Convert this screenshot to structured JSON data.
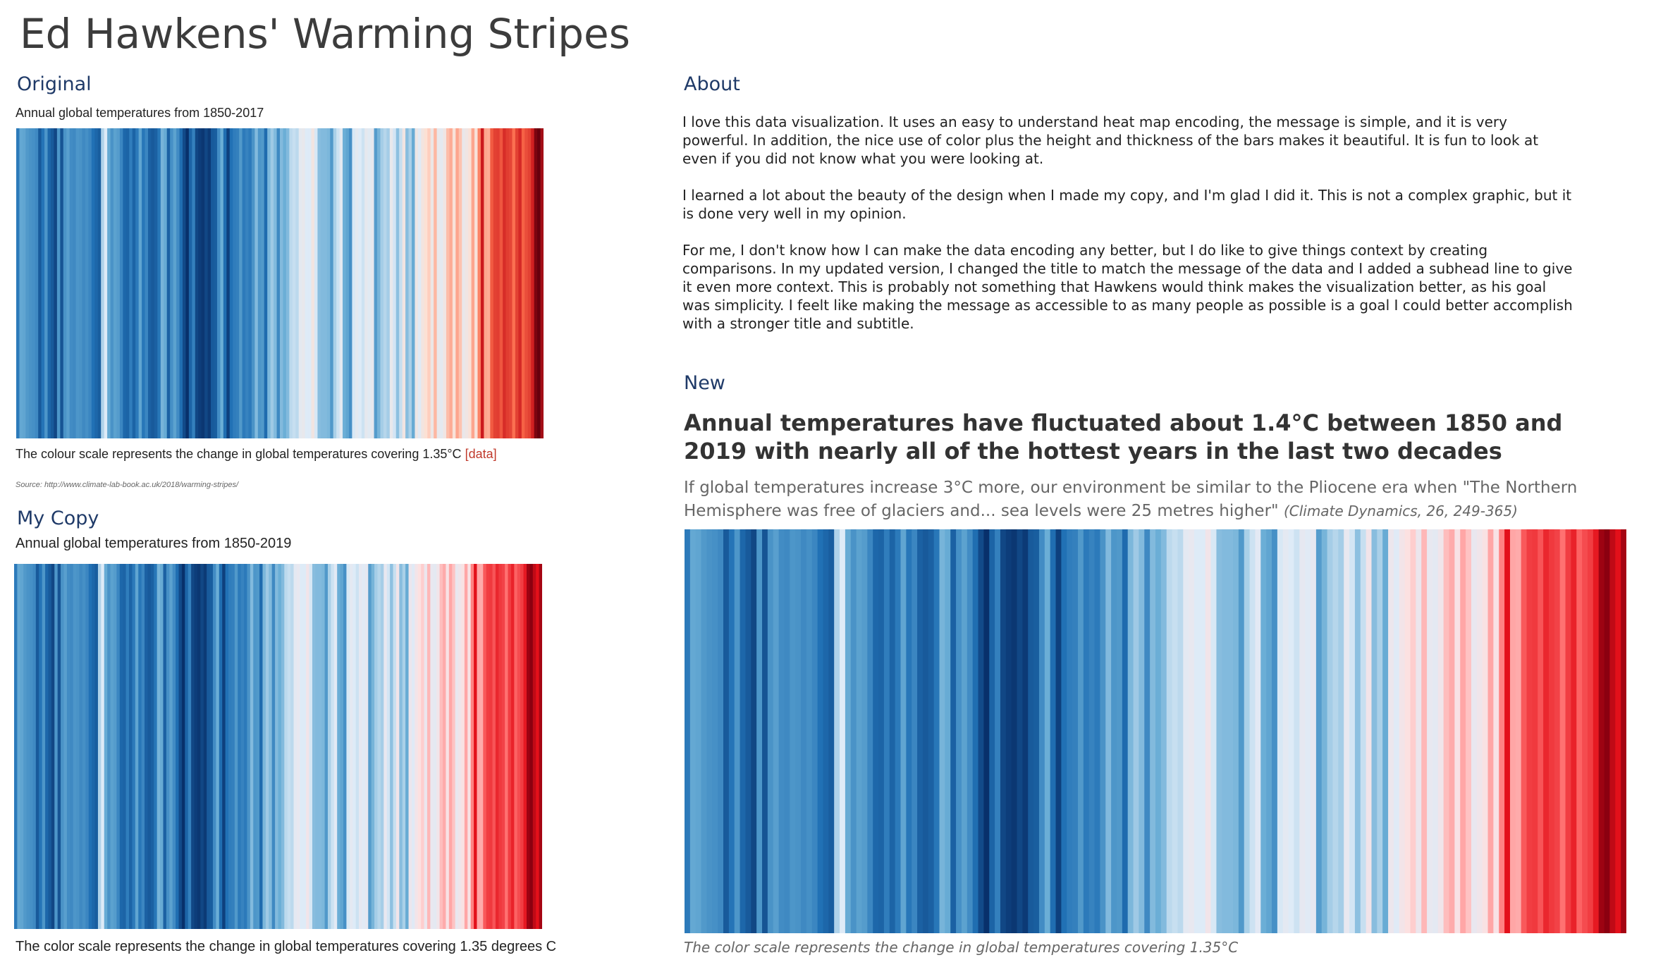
{
  "title": "Ed Hawkens' Warming Stripes",
  "about": {
    "heading": "About",
    "paragraphs": [
      "I love this data visualization. It uses an easy to understand heat map encoding, the message is simple, and it is very powerful. In addition, the nice use of color plus the height and thickness of the bars makes it beautiful. It is fun to look at even if you did not know what you were looking at.",
      "I learned a lot about the beauty of the design when I made my copy, and I'm glad I did it. This is not a complex graphic, but it is done very well in my opinion.",
      "For me, I don't know how I can make the data encoding any better, but I do like to give things context by creating comparisons. In my updated version, I changed the title to match the message of the data and I added a subhead line to give it even more context. This is probably not something that Hawkens would think makes the visualization better, as his goal was simplicity. I feelt like making the message as accessible to as many people as possible is a goal I could better accomplish with a stronger title and subtitle."
    ]
  },
  "chart_data": [
    {
      "type": "stripes",
      "section": "Original",
      "title": "Annual global temperatures from 1850-2017",
      "caption": "The colour scale represents the change in global temperatures covering 1.35°C",
      "caption_link": "[data]",
      "source": "Source: http://www.climate-lab-book.ac.uk/2018/warming-stripes/",
      "color_scale": {
        "min": -0.6,
        "max": 0.8,
        "colors": [
          "#08306b",
          "#2171b5",
          "#6baed6",
          "#deebf7",
          "#fee0d2",
          "#fb6a4a",
          "#cb181d",
          "#67000d"
        ]
      },
      "values": [
        -0.37,
        -0.22,
        -0.23,
        -0.27,
        -0.29,
        -0.3,
        -0.32,
        -0.47,
        -0.39,
        -0.28,
        -0.43,
        -0.47,
        -0.53,
        -0.28,
        -0.49,
        -0.29,
        -0.25,
        -0.31,
        -0.32,
        -0.28,
        -0.29,
        -0.32,
        -0.3,
        -0.33,
        -0.4,
        -0.43,
        -0.46,
        -0.08,
        0.0,
        -0.21,
        -0.29,
        -0.24,
        -0.26,
        -0.33,
        -0.43,
        -0.44,
        -0.36,
        -0.44,
        -0.37,
        -0.23,
        -0.38,
        -0.33,
        -0.45,
        -0.47,
        -0.45,
        -0.38,
        -0.18,
        -0.21,
        -0.45,
        -0.3,
        -0.24,
        -0.31,
        -0.41,
        -0.52,
        -0.6,
        -0.44,
        -0.35,
        -0.53,
        -0.56,
        -0.58,
        -0.53,
        -0.57,
        -0.47,
        -0.46,
        -0.31,
        -0.2,
        -0.41,
        -0.55,
        -0.4,
        -0.36,
        -0.35,
        -0.27,
        -0.37,
        -0.34,
        -0.37,
        -0.29,
        -0.16,
        -0.28,
        -0.27,
        -0.42,
        -0.17,
        -0.11,
        -0.16,
        -0.32,
        -0.16,
        -0.2,
        -0.16,
        -0.06,
        -0.04,
        -0.06,
        0.04,
        0.06,
        0.0,
        0.0,
        0.12,
        -0.01,
        -0.15,
        -0.16,
        -0.16,
        -0.17,
        -0.27,
        -0.09,
        -0.03,
        0.03,
        -0.2,
        -0.23,
        -0.3,
        -0.01,
        0.04,
        0.0,
        -0.03,
        0.05,
        0.02,
        0.05,
        -0.26,
        -0.18,
        -0.1,
        -0.07,
        -0.1,
        0.06,
        -0.02,
        -0.14,
        -0.04,
        0.12,
        -0.15,
        -0.09,
        -0.21,
        0.09,
        0.01,
        0.13,
        0.19,
        0.23,
        0.09,
        0.27,
        0.06,
        0.04,
        0.11,
        0.26,
        0.29,
        0.16,
        0.3,
        0.25,
        0.07,
        0.11,
        0.17,
        0.3,
        0.16,
        0.36,
        0.6,
        0.3,
        0.29,
        0.44,
        0.5,
        0.51,
        0.45,
        0.55,
        0.51,
        0.49,
        0.39,
        0.5,
        0.56,
        0.42,
        0.47,
        0.5,
        0.58,
        0.76,
        0.8,
        0.68
      ]
    },
    {
      "type": "stripes",
      "section": "My Copy",
      "title": "Annual global temperatures from 1850-2019",
      "caption": "The color scale represents the change in global temperatures covering 1.35 degrees C",
      "color_scale": {
        "min": -0.6,
        "max": 0.8,
        "colors": [
          "#08306b",
          "#2171b5",
          "#6baed6",
          "#deebf7",
          "#fee0e0",
          "#ff6b6b",
          "#e3101a",
          "#8b0010"
        ]
      },
      "values": [
        -0.37,
        -0.22,
        -0.23,
        -0.27,
        -0.29,
        -0.3,
        -0.32,
        -0.47,
        -0.39,
        -0.28,
        -0.43,
        -0.47,
        -0.53,
        -0.28,
        -0.49,
        -0.29,
        -0.25,
        -0.31,
        -0.32,
        -0.28,
        -0.29,
        -0.32,
        -0.3,
        -0.33,
        -0.4,
        -0.43,
        -0.46,
        -0.08,
        0.0,
        -0.21,
        -0.29,
        -0.24,
        -0.26,
        -0.33,
        -0.43,
        -0.44,
        -0.36,
        -0.44,
        -0.37,
        -0.23,
        -0.38,
        -0.33,
        -0.45,
        -0.47,
        -0.45,
        -0.38,
        -0.18,
        -0.21,
        -0.45,
        -0.3,
        -0.24,
        -0.31,
        -0.41,
        -0.52,
        -0.6,
        -0.44,
        -0.35,
        -0.53,
        -0.56,
        -0.58,
        -0.53,
        -0.57,
        -0.47,
        -0.46,
        -0.31,
        -0.2,
        -0.41,
        -0.55,
        -0.4,
        -0.36,
        -0.35,
        -0.27,
        -0.37,
        -0.34,
        -0.37,
        -0.29,
        -0.16,
        -0.28,
        -0.27,
        -0.42,
        -0.17,
        -0.11,
        -0.16,
        -0.32,
        -0.16,
        -0.2,
        -0.16,
        -0.06,
        -0.04,
        -0.06,
        0.04,
        0.06,
        0.0,
        0.0,
        0.12,
        -0.01,
        -0.15,
        -0.16,
        -0.16,
        -0.17,
        -0.27,
        -0.09,
        -0.03,
        0.03,
        -0.2,
        -0.23,
        -0.3,
        -0.01,
        0.04,
        0.0,
        -0.03,
        0.05,
        0.02,
        0.05,
        -0.26,
        -0.18,
        -0.1,
        -0.07,
        -0.1,
        0.06,
        -0.02,
        -0.14,
        -0.04,
        0.12,
        -0.15,
        -0.09,
        -0.21,
        0.09,
        0.01,
        0.13,
        0.19,
        0.23,
        0.09,
        0.27,
        0.06,
        0.04,
        0.11,
        0.26,
        0.29,
        0.16,
        0.3,
        0.25,
        0.07,
        0.11,
        0.17,
        0.3,
        0.16,
        0.36,
        0.6,
        0.3,
        0.29,
        0.44,
        0.5,
        0.51,
        0.45,
        0.55,
        0.51,
        0.49,
        0.39,
        0.5,
        0.56,
        0.42,
        0.47,
        0.5,
        0.58,
        0.76,
        0.8,
        0.68,
        0.6,
        0.74
      ]
    },
    {
      "type": "stripes",
      "section": "New",
      "title": "Annual temperatures have fluctuated about 1.4°C between 1850 and 2019 with nearly all of the hottest years in the last two decades",
      "subtitle": "If global temperatures increase 3°C more, our environment be similar to the Pliocene era when \"The Northern Hemisphere was free of glaciers and... sea levels were 25 metres higher\"",
      "subtitle_source": "(Climate Dynamics, 26, 249-365)",
      "caption": "The color scale represents the change in global temperatures covering 1.35°C",
      "color_scale": {
        "min": -0.6,
        "max": 0.8,
        "colors": [
          "#08306b",
          "#2171b5",
          "#6baed6",
          "#deebf7",
          "#fee0e0",
          "#ff6b6b",
          "#e3101a",
          "#8b0010"
        ]
      },
      "values": [
        -0.37,
        -0.22,
        -0.23,
        -0.27,
        -0.29,
        -0.3,
        -0.32,
        -0.47,
        -0.39,
        -0.28,
        -0.43,
        -0.47,
        -0.53,
        -0.28,
        -0.49,
        -0.29,
        -0.25,
        -0.31,
        -0.32,
        -0.28,
        -0.29,
        -0.32,
        -0.3,
        -0.33,
        -0.4,
        -0.43,
        -0.46,
        -0.08,
        0.0,
        -0.21,
        -0.29,
        -0.24,
        -0.26,
        -0.33,
        -0.43,
        -0.44,
        -0.36,
        -0.44,
        -0.37,
        -0.23,
        -0.38,
        -0.33,
        -0.45,
        -0.47,
        -0.45,
        -0.38,
        -0.18,
        -0.21,
        -0.45,
        -0.3,
        -0.24,
        -0.31,
        -0.41,
        -0.52,
        -0.6,
        -0.44,
        -0.35,
        -0.53,
        -0.56,
        -0.58,
        -0.53,
        -0.57,
        -0.47,
        -0.46,
        -0.31,
        -0.2,
        -0.41,
        -0.55,
        -0.4,
        -0.36,
        -0.35,
        -0.27,
        -0.37,
        -0.34,
        -0.37,
        -0.29,
        -0.16,
        -0.28,
        -0.27,
        -0.42,
        -0.17,
        -0.11,
        -0.16,
        -0.32,
        -0.16,
        -0.2,
        -0.16,
        -0.06,
        -0.04,
        -0.06,
        0.04,
        0.06,
        0.0,
        0.0,
        0.12,
        -0.01,
        -0.15,
        -0.16,
        -0.16,
        -0.17,
        -0.27,
        -0.09,
        -0.03,
        0.03,
        -0.2,
        -0.23,
        -0.3,
        -0.01,
        0.04,
        0.0,
        -0.03,
        0.05,
        0.02,
        0.05,
        -0.26,
        -0.18,
        -0.1,
        -0.07,
        -0.1,
        0.06,
        -0.02,
        -0.14,
        -0.04,
        0.12,
        -0.15,
        -0.09,
        -0.21,
        0.09,
        0.01,
        0.13,
        0.19,
        0.23,
        0.09,
        0.27,
        0.06,
        0.04,
        0.11,
        0.26,
        0.29,
        0.16,
        0.3,
        0.25,
        0.07,
        0.11,
        0.17,
        0.3,
        0.16,
        0.36,
        0.6,
        0.3,
        0.29,
        0.44,
        0.5,
        0.51,
        0.45,
        0.55,
        0.51,
        0.49,
        0.39,
        0.5,
        0.56,
        0.42,
        0.47,
        0.5,
        0.58,
        0.76,
        0.8,
        0.68,
        0.6,
        0.74
      ]
    }
  ]
}
